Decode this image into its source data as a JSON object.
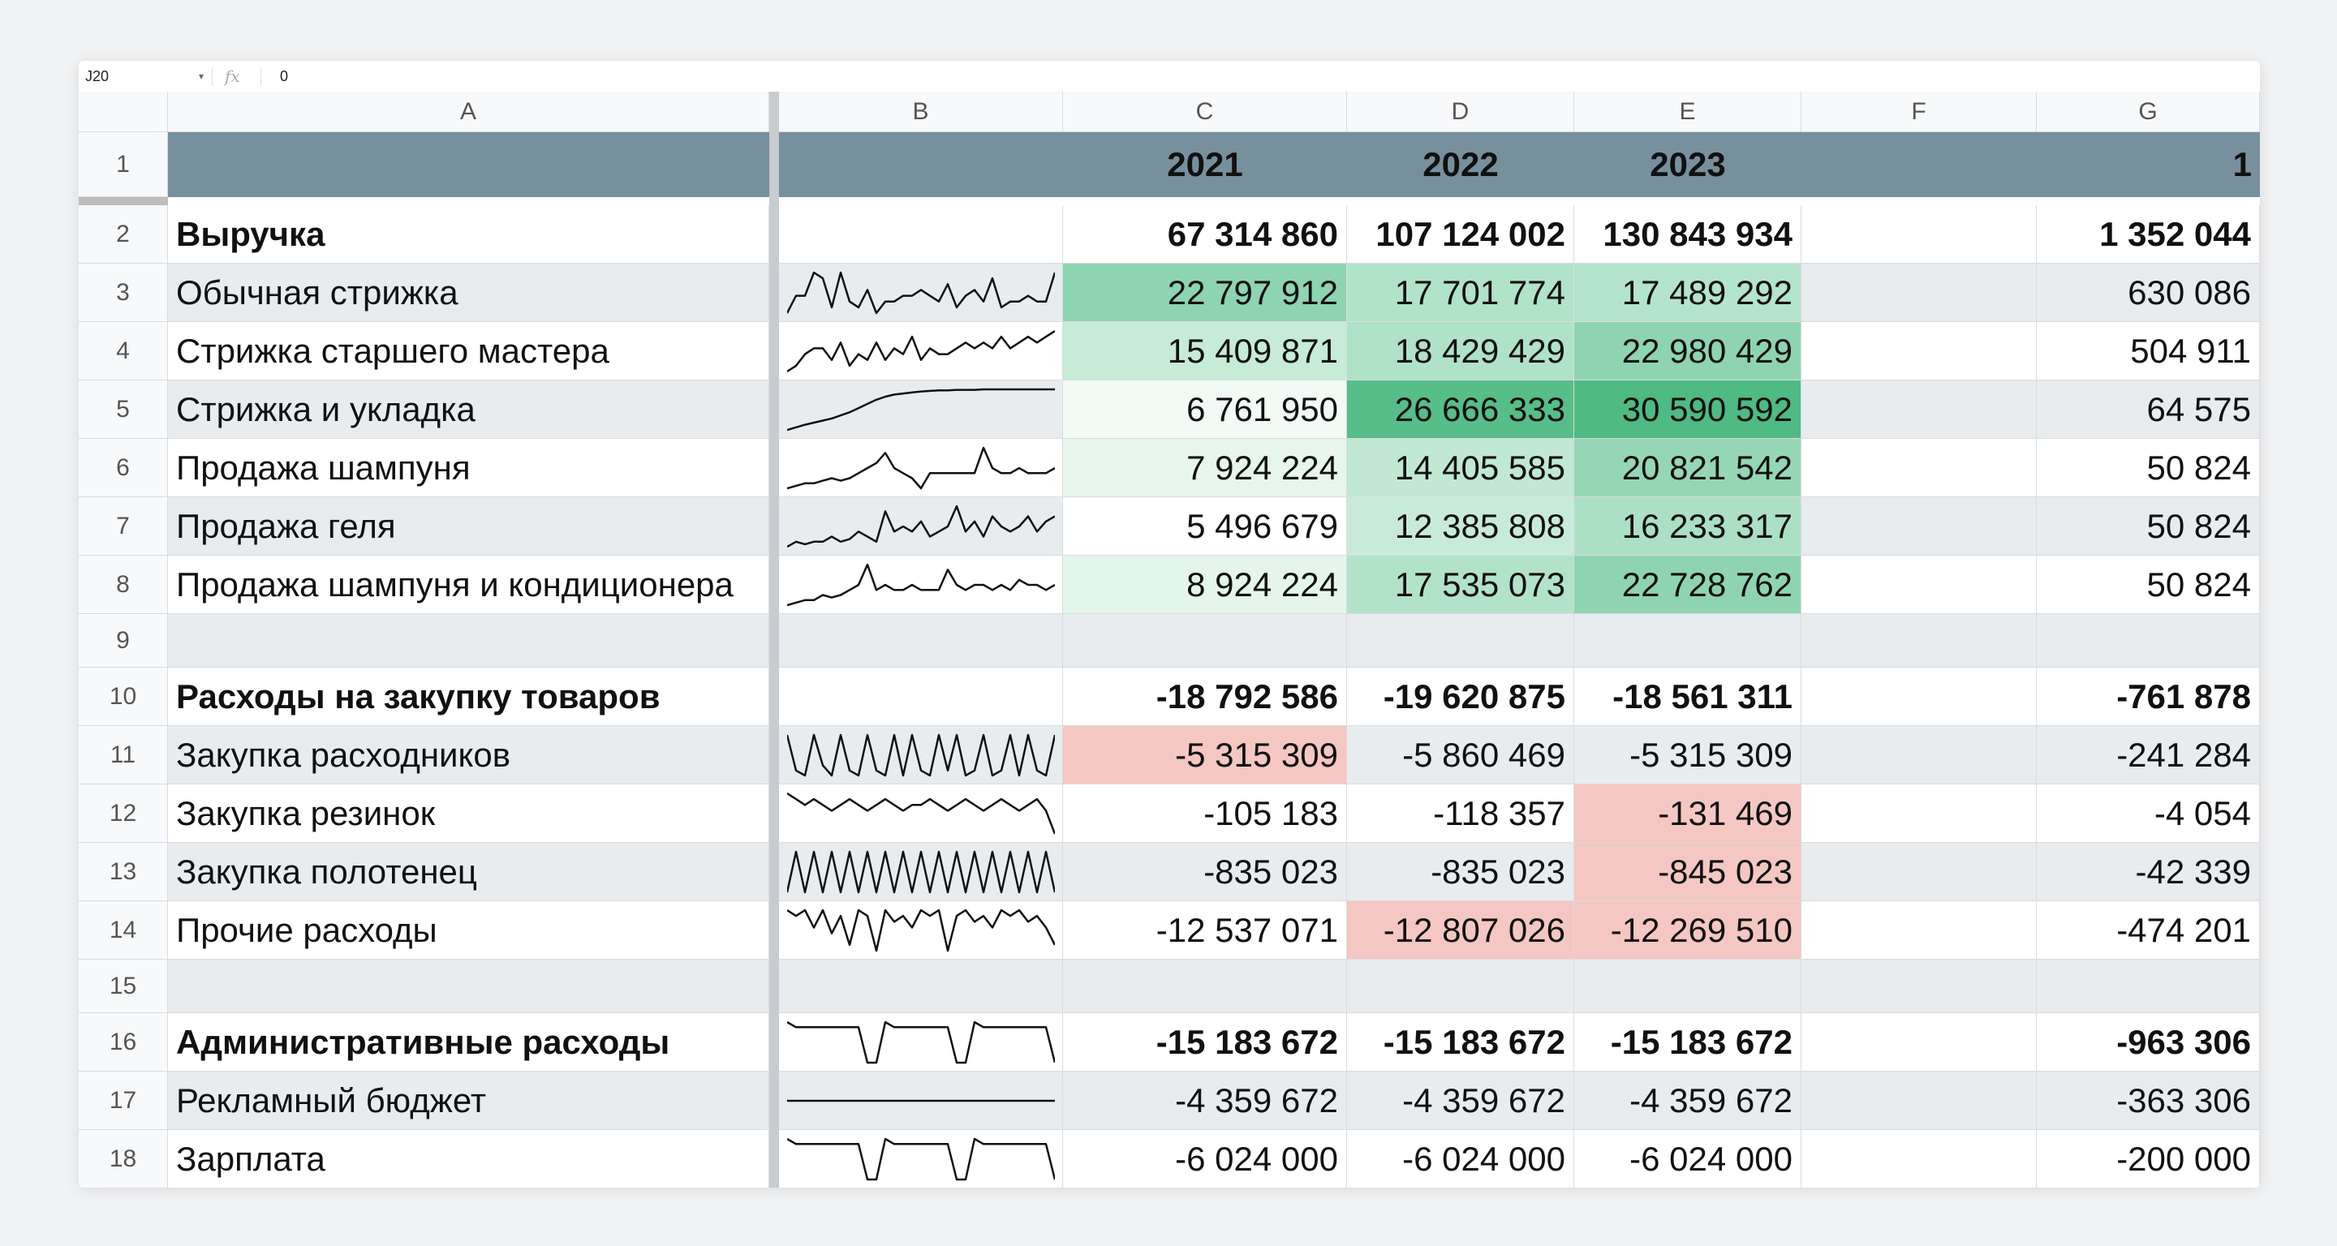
{
  "name_box": "J20",
  "fx_icon": "fx-icon",
  "formula_value": "0",
  "columns": [
    "A",
    "B",
    "C",
    "D",
    "E",
    "F",
    "G"
  ],
  "header_row": {
    "c": "2021",
    "d": "2022",
    "e": "2023",
    "g": "1"
  },
  "rows": [
    {
      "n": "2",
      "a": "Выручка",
      "c": "67 314 860",
      "d": "107 124 002",
      "e": "130 843 934",
      "g": "1 352 044",
      "bold": true
    },
    {
      "n": "3",
      "a": "Обычная стрижка",
      "c": "22 797 912",
      "d": "17 701 774",
      "e": "17 489 292",
      "g": "630 086"
    },
    {
      "n": "4",
      "a": "Стрижка старшего мастера",
      "c": "15 409 871",
      "d": "18 429 429",
      "e": "22 980 429",
      "g": "504 911"
    },
    {
      "n": "5",
      "a": "Стрижка и укладка",
      "c": "6 761 950",
      "d": "26 666 333",
      "e": "30 590 592",
      "g": "64 575"
    },
    {
      "n": "6",
      "a": "Продажа шампуня",
      "c": "7 924 224",
      "d": "14 405 585",
      "e": "20 821 542",
      "g": "50 824"
    },
    {
      "n": "7",
      "a": "Продажа геля",
      "c": "5 496 679",
      "d": "12 385 808",
      "e": "16 233 317",
      "g": "50 824"
    },
    {
      "n": "8",
      "a": "Продажа шампуня и кондиционера",
      "c": "8 924 224",
      "d": "17 535 073",
      "e": "22 728 762",
      "g": "50 824"
    },
    {
      "n": "9",
      "a": "",
      "c": "",
      "d": "",
      "e": "",
      "g": ""
    },
    {
      "n": "10",
      "a": "Расходы на закупку товаров",
      "c": "-18 792 586",
      "d": "-19 620 875",
      "e": "-18 561 311",
      "g": "-761 878",
      "bold": true
    },
    {
      "n": "11",
      "a": "Закупка расходников",
      "c": "-5 315 309",
      "d": "-5 860 469",
      "e": "-5 315 309",
      "g": "-241 284"
    },
    {
      "n": "12",
      "a": "Закупка резинок",
      "c": "-105 183",
      "d": "-118 357",
      "e": "-131 469",
      "g": "-4 054"
    },
    {
      "n": "13",
      "a": "Закупка полотенец",
      "c": "-835 023",
      "d": "-835 023",
      "e": "-845 023",
      "g": "-42 339"
    },
    {
      "n": "14",
      "a": "Прочие расходы",
      "c": "-12 537 071",
      "d": "-12 807 026",
      "e": "-12 269 510",
      "g": "-474 201"
    },
    {
      "n": "15",
      "a": "",
      "c": "",
      "d": "",
      "e": "",
      "g": ""
    },
    {
      "n": "16",
      "a": "Административные расходы",
      "c": "-15 183 672",
      "d": "-15 183 672",
      "e": "-15 183 672",
      "g": "-963 306",
      "bold": true
    },
    {
      "n": "17",
      "a": "Рекламный бюджет",
      "c": "-4 359 672",
      "d": "-4 359 672",
      "e": "-4 359 672",
      "g": "-363 306"
    },
    {
      "n": "18",
      "a": "Зарплата",
      "c": "-6 024 000",
      "d": "-6 024 000",
      "e": "-6 024 000",
      "g": "-200 000"
    }
  ],
  "fills": {
    "3": {
      "c": "#8ed4b0",
      "d": "#b1e3c9",
      "e": "#b4e4cb"
    },
    "4": {
      "c": "#c6ebd7",
      "d": "#b0e2c7",
      "e": "#8fd4b0"
    },
    "5": {
      "c": "#f1faf5",
      "d": "#57bd89",
      "e": "#4fba83"
    },
    "6": {
      "c": "#e6f6ed",
      "d": "#c0e8d3",
      "e": "#95d7b4"
    },
    "7": {
      "c": "#ffffff",
      "d": "#c8ebd9",
      "e": "#ace0c4"
    },
    "8": {
      "c": "#e4f5ec",
      "d": "#b2e3c9",
      "e": "#8fd4b0"
    },
    "11": {
      "c": "#f4c7c3"
    },
    "12": {
      "e": "#f4c7c3"
    },
    "13": {
      "e": "#f4c7c3"
    },
    "14": {
      "d": "#f4c7c3",
      "e": "#f4c7c3"
    }
  },
  "sparklines": {
    "3": [
      2,
      5,
      5,
      9,
      8,
      3,
      9,
      4,
      3,
      6,
      2,
      4,
      4,
      5,
      5,
      6,
      5,
      4,
      7,
      3,
      5,
      6,
      4,
      8,
      3,
      4,
      4,
      5,
      4,
      4,
      9
    ],
    "4": [
      2,
      3,
      5,
      6,
      6,
      4,
      7,
      3,
      5,
      4,
      7,
      4,
      6,
      5,
      8,
      4,
      6,
      5,
      5,
      6,
      7,
      6,
      7,
      6,
      8,
      6,
      7,
      8,
      7,
      8,
      9
    ],
    "5": [
      1,
      1.5,
      2,
      2.4,
      2.8,
      3.2,
      3.8,
      4.4,
      5.2,
      6,
      6.8,
      7.4,
      7.8,
      8,
      8.2,
      8.4,
      8.5,
      8.6,
      8.6,
      8.7,
      8.7,
      8.7,
      8.8,
      8.8,
      8.8,
      8.8,
      8.8,
      8.8,
      8.8,
      8.8,
      8.8
    ],
    "6": [
      1,
      1.5,
      2,
      2,
      2.5,
      3,
      2.5,
      3,
      4,
      5,
      6,
      8,
      5,
      4,
      3,
      1,
      4,
      4,
      4,
      4,
      4,
      4,
      9,
      5,
      4,
      4,
      5,
      4,
      4,
      4,
      5
    ],
    "7": [
      1,
      2,
      1.5,
      2,
      2,
      3,
      2,
      2.5,
      4,
      3,
      2,
      8,
      4,
      5,
      4,
      6,
      3,
      4,
      5,
      9,
      4,
      6,
      3,
      7,
      5,
      4,
      5,
      7,
      4,
      6,
      7
    ],
    "8": [
      1,
      1.5,
      2,
      2,
      3,
      2.5,
      3,
      4,
      5,
      9,
      4,
      5,
      4,
      4,
      5,
      4,
      4,
      4,
      8,
      5,
      4,
      5,
      5,
      4,
      5,
      4,
      6,
      5,
      5,
      4,
      5
    ],
    "11": [
      9,
      2,
      1,
      9,
      3,
      1,
      9,
      2,
      1,
      9,
      2,
      1,
      9,
      1,
      9,
      2,
      1,
      9,
      2,
      9,
      1,
      2,
      9,
      1,
      2,
      9,
      1,
      9,
      2,
      1,
      9
    ],
    "12": [
      8,
      7,
      6,
      7,
      6,
      5,
      6,
      7,
      6,
      5,
      6,
      7,
      6,
      5,
      6,
      6,
      7,
      6,
      5,
      6,
      7,
      6,
      5,
      6,
      7,
      6,
      5,
      6,
      7,
      5,
      1
    ],
    "13": [
      1,
      9,
      1,
      9,
      1,
      9,
      1,
      9,
      1,
      9,
      1,
      9,
      1,
      9,
      1,
      9,
      1,
      9,
      1,
      9,
      1,
      9,
      1,
      9,
      1,
      9,
      1,
      9,
      1,
      9,
      1
    ],
    "14": [
      9,
      8,
      9,
      6,
      9,
      5,
      8,
      3,
      9,
      8,
      2,
      9,
      7,
      8,
      6,
      9,
      8,
      9,
      2,
      8,
      9,
      7,
      8,
      6,
      9,
      8,
      9,
      7,
      8,
      6,
      3
    ],
    "16": [
      9,
      8,
      8,
      8,
      8,
      8,
      8,
      8,
      8,
      1,
      1,
      9,
      8,
      8,
      8,
      8,
      8,
      8,
      8,
      1,
      1,
      9,
      8,
      8,
      8,
      8,
      8,
      8,
      8,
      8,
      1
    ],
    "17": [
      5,
      5,
      5,
      5,
      5,
      5,
      5,
      5,
      5,
      5,
      5,
      5,
      5,
      5,
      5,
      5,
      5,
      5,
      5,
      5,
      5,
      5,
      5,
      5,
      5,
      5,
      5,
      5,
      5,
      5,
      5
    ],
    "18": [
      9,
      8,
      8,
      8,
      8,
      8,
      8,
      8,
      8,
      1,
      1,
      9,
      8,
      8,
      8,
      8,
      8,
      8,
      8,
      1,
      1,
      9,
      8,
      8,
      8,
      8,
      8,
      8,
      8,
      8,
      1
    ]
  }
}
